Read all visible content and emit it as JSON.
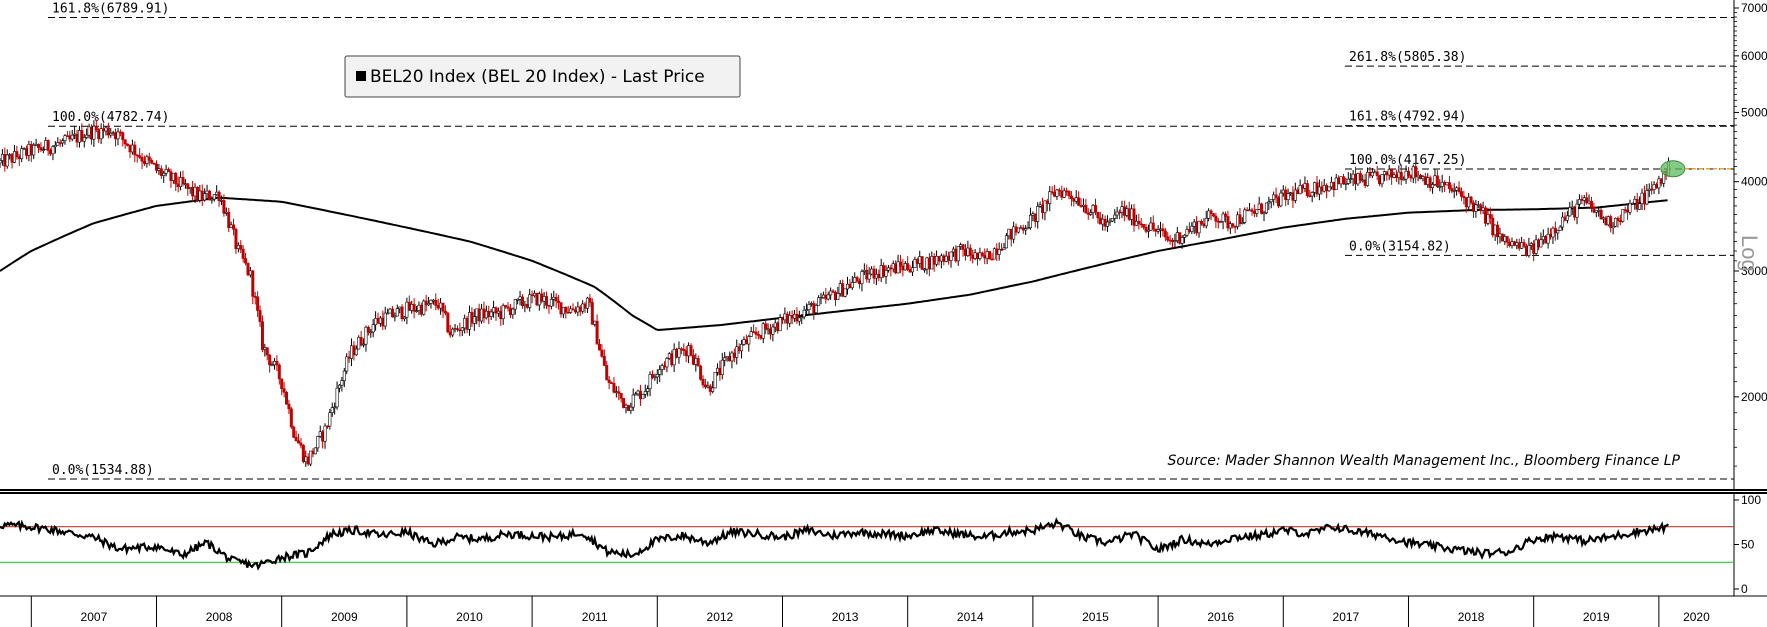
{
  "chart_data": [
    {
      "type": "candlestick",
      "title": "",
      "legend": {
        "entries": [
          "BEL20 Index (BEL 20 Index) - Last Price"
        ],
        "placement": "top-left"
      },
      "source": "Source: Mader Shannon Wealth Management Inc., Bloomberg Finance LP",
      "scale_label": "Log",
      "y_scale": "log",
      "ylim": [
        1530,
        7000
      ],
      "y_ticks": [
        2000,
        3000,
        4000,
        5000,
        6000,
        7000
      ],
      "xlim": [
        2006.75,
        2020.6
      ],
      "x_ticks": [
        "2007",
        "2008",
        "2009",
        "2010",
        "2011",
        "2012",
        "2013",
        "2014",
        "2015",
        "2016",
        "2017",
        "2018",
        "2019",
        "2020"
      ],
      "price_series": {
        "name": "BEL20 Index (BEL 20 Index) - Last Price",
        "x": [
          2006.75,
          2007.0,
          2007.3,
          2007.45,
          2007.65,
          2007.9,
          2008.0,
          2008.2,
          2008.35,
          2008.5,
          2008.65,
          2008.75,
          2008.85,
          2009.0,
          2009.1,
          2009.2,
          2009.35,
          2009.55,
          2009.75,
          2010.0,
          2010.25,
          2010.35,
          2010.55,
          2010.75,
          2010.9,
          2011.05,
          2011.3,
          2011.45,
          2011.6,
          2011.75,
          2011.9,
          2012.0,
          2012.25,
          2012.4,
          2012.6,
          2012.8,
          2013.0,
          2013.3,
          2013.5,
          2013.75,
          2014.0,
          2014.2,
          2014.3,
          2014.45,
          2014.6,
          2014.8,
          2015.0,
          2015.2,
          2015.35,
          2015.6,
          2015.7,
          2016.0,
          2016.1,
          2016.45,
          2016.55,
          2016.8,
          2017.0,
          2017.3,
          2017.5,
          2017.8,
          2018.0,
          2018.2,
          2018.4,
          2018.6,
          2018.75,
          2018.98,
          2019.2,
          2019.4,
          2019.6,
          2019.8,
          2019.95,
          2020.08
        ],
        "values": [
          4250,
          4420,
          4550,
          4700,
          4720,
          4300,
          4150,
          3950,
          3800,
          3850,
          3200,
          2950,
          2350,
          2100,
          1780,
          1620,
          1800,
          2300,
          2550,
          2650,
          2700,
          2450,
          2600,
          2620,
          2700,
          2750,
          2650,
          2700,
          2100,
          1950,
          2050,
          2200,
          2350,
          2050,
          2300,
          2450,
          2550,
          2700,
          2850,
          3000,
          3050,
          3100,
          3150,
          3200,
          3100,
          3350,
          3550,
          3900,
          3800,
          3450,
          3650,
          3400,
          3300,
          3600,
          3500,
          3650,
          3800,
          3950,
          4000,
          4050,
          4150,
          4000,
          3850,
          3600,
          3300,
          3200,
          3500,
          3750,
          3500,
          3700,
          3900,
          4170
        ]
      },
      "moving_average": {
        "x": [
          2006.75,
          2007.0,
          2007.5,
          2008.0,
          2008.5,
          2009.0,
          2009.5,
          2010.0,
          2010.5,
          2011.0,
          2011.5,
          2011.8,
          2012.0,
          2012.5,
          2013.0,
          2013.5,
          2014.0,
          2014.5,
          2015.0,
          2015.5,
          2016.0,
          2016.5,
          2017.0,
          2017.5,
          2018.0,
          2018.5,
          2019.0,
          2019.5,
          2020.08
        ],
        "values": [
          3000,
          3200,
          3500,
          3700,
          3800,
          3750,
          3600,
          3450,
          3300,
          3100,
          2850,
          2600,
          2480,
          2520,
          2580,
          2640,
          2700,
          2780,
          2900,
          3050,
          3200,
          3320,
          3450,
          3550,
          3620,
          3650,
          3660,
          3680,
          3770
        ]
      },
      "fibonacci_levels": [
        {
          "label": "161.8%(6789.91)",
          "value": 6789.91
        },
        {
          "label": "100.0%(4782.74)",
          "value": 4782.74
        },
        {
          "label": "0.0%(1534.88)",
          "value": 1534.88
        },
        {
          "label": "261.8%(5805.38)",
          "value": 5805.38
        },
        {
          "label": "161.8%(4792.94)",
          "value": 4792.94
        },
        {
          "label": "100.0%(4167.25)",
          "value": 4167.25
        },
        {
          "label": "0.0%(3154.82)",
          "value": 3154.82
        }
      ],
      "grid": false
    },
    {
      "type": "line",
      "title": "",
      "ylim": [
        0,
        100
      ],
      "y_ticks": [
        0,
        50,
        100
      ],
      "reference_lines": [
        {
          "value": 70,
          "color": "#c0392b"
        },
        {
          "value": 30,
          "color": "#2ecc40"
        }
      ],
      "series": [
        {
          "x": [
            2006.75,
            2007.0,
            2007.2,
            2007.5,
            2007.7,
            2008.0,
            2008.2,
            2008.4,
            2008.6,
            2008.8,
            2009.0,
            2009.2,
            2009.4,
            2009.6,
            2009.8,
            2010.0,
            2010.2,
            2010.4,
            2010.6,
            2010.8,
            2011.0,
            2011.2,
            2011.4,
            2011.6,
            2011.8,
            2012.0,
            2012.2,
            2012.4,
            2012.6,
            2012.8,
            2013.0,
            2013.2,
            2013.4,
            2013.6,
            2013.8,
            2014.0,
            2014.2,
            2014.4,
            2014.6,
            2014.8,
            2015.0,
            2015.2,
            2015.4,
            2015.6,
            2015.8,
            2016.0,
            2016.2,
            2016.4,
            2016.6,
            2016.8,
            2017.0,
            2017.2,
            2017.4,
            2017.6,
            2017.8,
            2018.0,
            2018.2,
            2018.4,
            2018.6,
            2018.8,
            2019.0,
            2019.2,
            2019.4,
            2019.6,
            2019.8,
            2020.0,
            2020.08
          ],
          "values": [
            72,
            70,
            66,
            58,
            45,
            48,
            38,
            52,
            32,
            26,
            36,
            40,
            62,
            66,
            60,
            64,
            50,
            58,
            56,
            62,
            60,
            58,
            64,
            42,
            38,
            55,
            60,
            52,
            64,
            62,
            58,
            66,
            60,
            64,
            62,
            60,
            66,
            62,
            58,
            64,
            66,
            74,
            58,
            52,
            62,
            44,
            56,
            50,
            58,
            60,
            66,
            62,
            70,
            64,
            60,
            52,
            48,
            44,
            40,
            42,
            56,
            60,
            54,
            58,
            64,
            68,
            70
          ]
        }
      ]
    }
  ]
}
